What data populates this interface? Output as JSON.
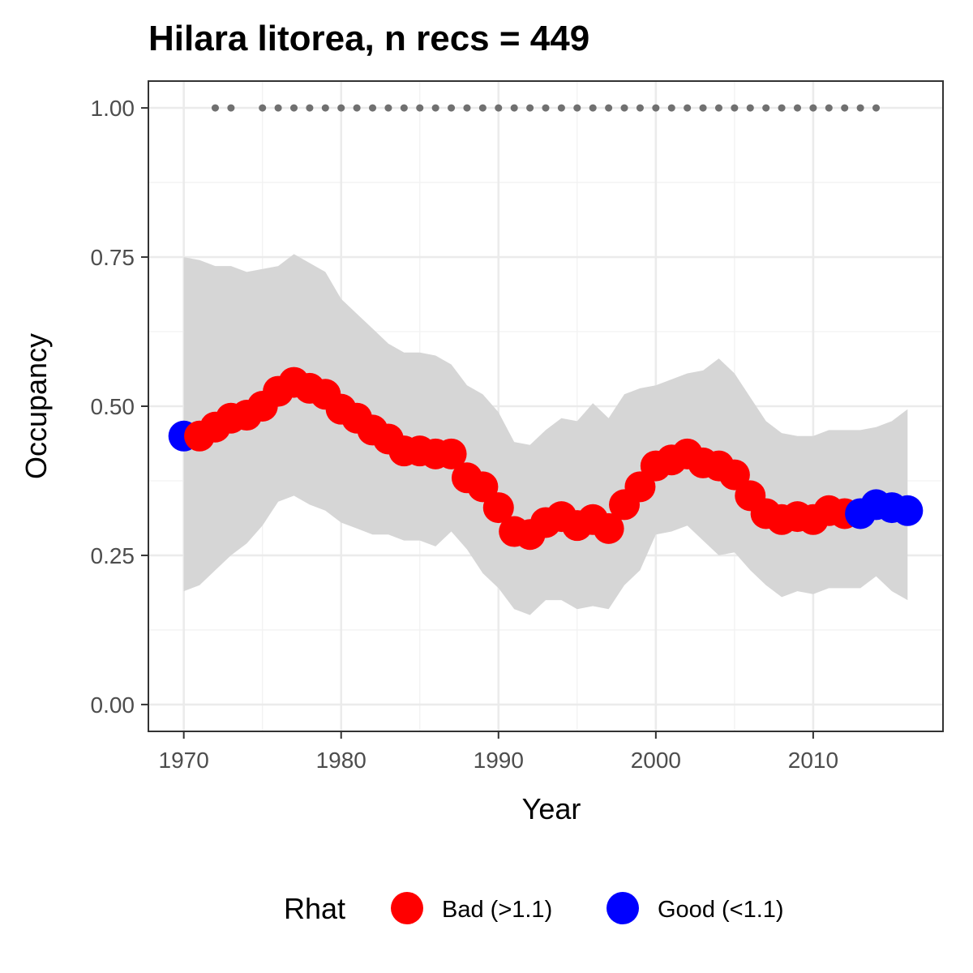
{
  "chart_data": {
    "type": "line",
    "title": "Hilara litorea, n recs = 449",
    "xlabel": "Year",
    "ylabel": "Occupancy",
    "xlim": [
      1967.75,
      2018.25
    ],
    "ylim": [
      -0.045,
      1.045
    ],
    "x_ticks": [
      1970,
      1980,
      1990,
      2000,
      2010
    ],
    "x_tick_labels": [
      "1970",
      "1980",
      "1990",
      "2000",
      "2010"
    ],
    "y_ticks": [
      0,
      0.25,
      0.5,
      0.75,
      1.0
    ],
    "y_tick_labels": [
      "0.00",
      "0.25",
      "0.50",
      "0.75",
      "1.00"
    ],
    "grid": true,
    "legend": {
      "title": "Rhat",
      "position": "bottom",
      "entries": [
        {
          "label": "Bad (>1.1)",
          "color": "#ff0000"
        },
        {
          "label": "Good (<1.1)",
          "color": "#0000ff"
        }
      ]
    },
    "colors": {
      "bad": "#ff0000",
      "good": "#0000ff",
      "ribbon": "#d6d6d6",
      "record_dots": "#707070"
    },
    "x": [
      1970,
      1971,
      1972,
      1973,
      1974,
      1975,
      1976,
      1977,
      1978,
      1979,
      1980,
      1981,
      1982,
      1983,
      1984,
      1985,
      1986,
      1987,
      1988,
      1989,
      1990,
      1991,
      1992,
      1993,
      1994,
      1995,
      1996,
      1997,
      1998,
      1999,
      2000,
      2001,
      2002,
      2003,
      2004,
      2005,
      2006,
      2007,
      2008,
      2009,
      2010,
      2011,
      2012,
      2013,
      2014,
      2015,
      2016
    ],
    "series": [
      {
        "values": [
          0.45,
          0.45,
          0.465,
          0.48,
          0.485,
          0.5,
          0.525,
          0.54,
          0.53,
          0.52,
          0.495,
          0.48,
          0.46,
          0.445,
          0.425,
          0.425,
          0.42,
          0.42,
          0.38,
          0.365,
          0.33,
          0.29,
          0.285,
          0.305,
          0.315,
          0.3,
          0.31,
          0.295,
          0.335,
          0.365,
          0.4,
          0.41,
          0.42,
          0.405,
          0.4,
          0.385,
          0.35,
          0.32,
          0.31,
          0.315,
          0.31,
          0.325,
          0.32,
          0.32,
          0.335,
          0.33,
          0.325
        ],
        "rhat": [
          "Good",
          "Bad",
          "Bad",
          "Bad",
          "Bad",
          "Bad",
          "Bad",
          "Bad",
          "Bad",
          "Bad",
          "Bad",
          "Bad",
          "Bad",
          "Bad",
          "Bad",
          "Bad",
          "Bad",
          "Bad",
          "Bad",
          "Bad",
          "Bad",
          "Bad",
          "Bad",
          "Bad",
          "Bad",
          "Bad",
          "Bad",
          "Bad",
          "Bad",
          "Bad",
          "Bad",
          "Bad",
          "Bad",
          "Bad",
          "Bad",
          "Bad",
          "Bad",
          "Bad",
          "Bad",
          "Bad",
          "Bad",
          "Bad",
          "Bad",
          "Good",
          "Good",
          "Good",
          "Good"
        ],
        "lower": [
          0.19,
          0.2,
          0.225,
          0.25,
          0.27,
          0.3,
          0.34,
          0.35,
          0.335,
          0.325,
          0.305,
          0.295,
          0.285,
          0.285,
          0.275,
          0.275,
          0.265,
          0.29,
          0.26,
          0.22,
          0.195,
          0.16,
          0.15,
          0.175,
          0.175,
          0.16,
          0.165,
          0.16,
          0.2,
          0.225,
          0.285,
          0.29,
          0.3,
          0.275,
          0.25,
          0.255,
          0.225,
          0.2,
          0.18,
          0.19,
          0.185,
          0.195,
          0.195,
          0.195,
          0.215,
          0.19,
          0.175
        ],
        "upper": [
          0.75,
          0.745,
          0.735,
          0.735,
          0.725,
          0.73,
          0.735,
          0.755,
          0.74,
          0.725,
          0.68,
          0.655,
          0.63,
          0.605,
          0.59,
          0.59,
          0.585,
          0.57,
          0.535,
          0.52,
          0.49,
          0.44,
          0.435,
          0.46,
          0.48,
          0.475,
          0.505,
          0.48,
          0.52,
          0.53,
          0.535,
          0.545,
          0.555,
          0.56,
          0.58,
          0.555,
          0.515,
          0.475,
          0.455,
          0.45,
          0.45,
          0.46,
          0.46,
          0.46,
          0.465,
          0.475,
          0.495
        ]
      }
    ],
    "record_years": {
      "y": 1.0,
      "x": [
        1972,
        1973,
        1975,
        1976,
        1977,
        1978,
        1979,
        1980,
        1981,
        1982,
        1983,
        1984,
        1985,
        1986,
        1987,
        1988,
        1989,
        1990,
        1991,
        1992,
        1993,
        1994,
        1995,
        1996,
        1997,
        1998,
        1999,
        2000,
        2001,
        2002,
        2003,
        2004,
        2005,
        2006,
        2007,
        2008,
        2009,
        2010,
        2011,
        2012,
        2013,
        2014
      ]
    }
  }
}
